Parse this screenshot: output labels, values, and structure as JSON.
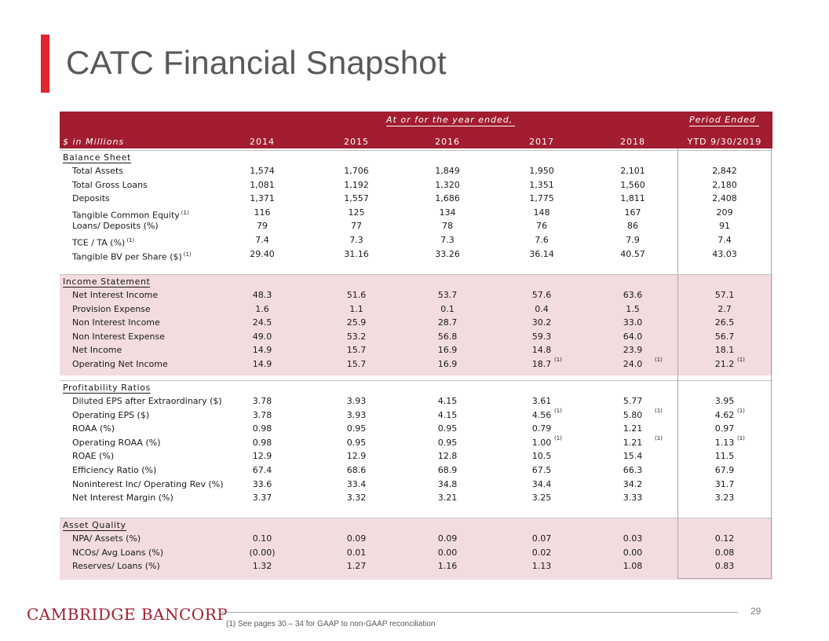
{
  "title": "CATC Financial Snapshot",
  "header": {
    "group_label": "At or for the year ended,",
    "period_label": "Period Ended",
    "unit_label": "$ in Millions",
    "years": [
      "2014",
      "2015",
      "2016",
      "2017",
      "2018"
    ],
    "ytd_label": "YTD 9/30/2019"
  },
  "sections": [
    {
      "name": "Balance Sheet",
      "rows": [
        {
          "label": "Total Assets",
          "sup": "",
          "values": [
            "1,574",
            "1,706",
            "1,849",
            "1,950",
            "2,101",
            "2,842"
          ]
        },
        {
          "label": "Total Gross Loans",
          "sup": "",
          "values": [
            "1,081",
            "1,192",
            "1,320",
            "1,351",
            "1,560",
            "2,180"
          ]
        },
        {
          "label": "Deposits",
          "sup": "",
          "values": [
            "1,371",
            "1,557",
            "1,686",
            "1,775",
            "1,811",
            "2,408"
          ]
        },
        {
          "label": "Tangible Common Equity",
          "sup": "(1)",
          "values": [
            "116",
            "125",
            "134",
            "148",
            "167",
            "209"
          ]
        },
        {
          "label": "Loans/ Deposits (%)",
          "sup": "",
          "values": [
            "79",
            "77",
            "78",
            "76",
            "86",
            "91"
          ]
        },
        {
          "label": "TCE / TA (%)",
          "sup": "(1)",
          "values": [
            "7.4",
            "7.3",
            "7.3",
            "7.6",
            "7.9",
            "7.4"
          ]
        },
        {
          "label": "Tangible BV per Share ($)",
          "sup": "(1)",
          "values": [
            "29.40",
            "31.16",
            "33.26",
            "36.14",
            "40.57",
            "43.03"
          ]
        }
      ]
    },
    {
      "name": "Income Statement",
      "rows": [
        {
          "label": "Net Interest Income",
          "sup": "",
          "values": [
            "48.3",
            "51.6",
            "53.7",
            "57.6",
            "63.6",
            "57.1"
          ]
        },
        {
          "label": "Provision Expense",
          "sup": "",
          "values": [
            "1.6",
            "1.1",
            "0.1",
            "0.4",
            "1.5",
            "2.7"
          ]
        },
        {
          "label": "Non Interest Income",
          "sup": "",
          "values": [
            "24.5",
            "25.9",
            "28.7",
            "30.2",
            "33.0",
            "26.5"
          ]
        },
        {
          "label": "Non Interest Expense",
          "sup": "",
          "values": [
            "49.0",
            "53.2",
            "56.8",
            "59.3",
            "64.0",
            "56.7"
          ]
        },
        {
          "label": "Net Income",
          "sup": "",
          "values": [
            "14.9",
            "15.7",
            "16.9",
            "14.8",
            "23.9",
            "18.1"
          ]
        },
        {
          "label": "Operating Net Income",
          "sup": "",
          "values": [
            "14.9",
            "15.7",
            "16.9",
            "18.7",
            "24.0",
            "21.2"
          ],
          "value_sups": [
            "",
            "",
            "",
            "(1)",
            "(1)",
            "(1)"
          ]
        }
      ]
    },
    {
      "name": "Profitability Ratios",
      "rows": [
        {
          "label": "Diluted EPS after Extraordinary ($)",
          "sup": "",
          "values": [
            "3.78",
            "3.93",
            "4.15",
            "3.61",
            "5.77",
            "3.95"
          ]
        },
        {
          "label": "Operating EPS ($)",
          "sup": "",
          "values": [
            "3.78",
            "3.93",
            "4.15",
            "4.56",
            "5.80",
            "4.62"
          ],
          "value_sups": [
            "",
            "",
            "",
            "(1)",
            "(1)",
            "(1)"
          ]
        },
        {
          "label": "ROAA (%)",
          "sup": "",
          "values": [
            "0.98",
            "0.95",
            "0.95",
            "0.79",
            "1.21",
            "0.97"
          ]
        },
        {
          "label": "Operating ROAA (%)",
          "sup": "",
          "values": [
            "0.98",
            "0.95",
            "0.95",
            "1.00",
            "1.21",
            "1.13"
          ],
          "value_sups": [
            "",
            "",
            "",
            "(1)",
            "(1)",
            "(1)"
          ]
        },
        {
          "label": "ROAE (%)",
          "sup": "",
          "values": [
            "12.9",
            "12.9",
            "12.8",
            "10.5",
            "15.4",
            "11.5"
          ]
        },
        {
          "label": "Efficiency Ratio (%)",
          "sup": "",
          "values": [
            "67.4",
            "68.6",
            "68.9",
            "67.5",
            "66.3",
            "67.9"
          ]
        },
        {
          "label": "Noninterest Inc/ Operating Rev (%)",
          "sup": "",
          "values": [
            "33.6",
            "33.4",
            "34.8",
            "34.4",
            "34.2",
            "31.7"
          ]
        },
        {
          "label": "Net Interest Margin (%)",
          "sup": "",
          "values": [
            "3.37",
            "3.32",
            "3.21",
            "3.25",
            "3.33",
            "3.23"
          ]
        }
      ]
    },
    {
      "name": "Asset Quality",
      "rows": [
        {
          "label": "NPA/ Assets (%)",
          "sup": "",
          "values": [
            "0.10",
            "0.09",
            "0.09",
            "0.07",
            "0.03",
            "0.12"
          ]
        },
        {
          "label": "NCOs/ Avg Loans (%)",
          "sup": "",
          "values": [
            "(0.00)",
            "0.01",
            "0.00",
            "0.02",
            "0.00",
            "0.08"
          ]
        },
        {
          "label": "Reserves/ Loans (%)",
          "sup": "",
          "values": [
            "1.32",
            "1.27",
            "1.16",
            "1.13",
            "1.08",
            "0.83"
          ]
        }
      ]
    }
  ],
  "footer": {
    "logo": "CAMBRIDGE BANCORP",
    "page_number": "29",
    "footnote": "(1)    See pages 30 – 34 for GAAP to non-GAAP reconciliation"
  },
  "colors": {
    "accent": "#e1252f",
    "header_bg": "#a11d2f",
    "shaded_section": "#f2dcdf",
    "title_text": "#595959"
  }
}
